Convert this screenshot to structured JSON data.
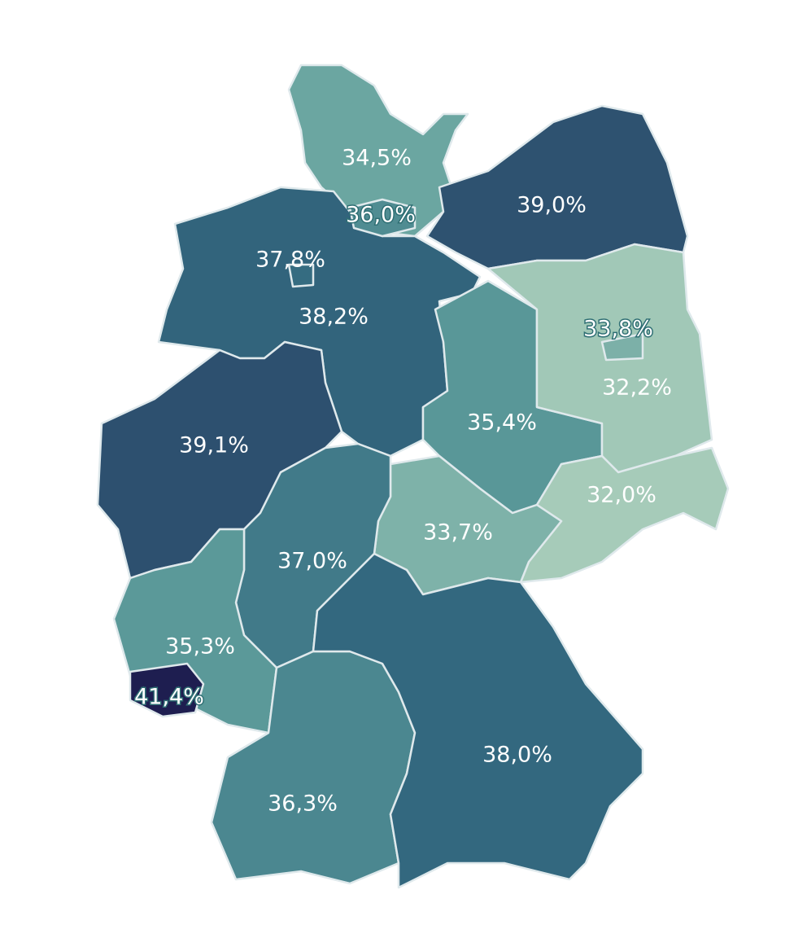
{
  "regions": [
    {
      "value": 34.5,
      "label": "34,5%"
    },
    {
      "value": 39.0,
      "label": "39,0%"
    },
    {
      "value": 38.2,
      "label": "38,2%"
    },
    {
      "value": 35.4,
      "label": "35,4%"
    },
    {
      "value": 32.2,
      "label": "32,2%"
    },
    {
      "value": 32.0,
      "label": "32,0%"
    },
    {
      "value": 33.7,
      "label": "33,7%"
    },
    {
      "value": 39.1,
      "label": "39,1%"
    },
    {
      "value": 37.0,
      "label": "37,0%"
    },
    {
      "value": 35.3,
      "label": "35,3%"
    },
    {
      "value": 36.3,
      "label": "36,3%"
    },
    {
      "value": 38.0,
      "label": "38,0%"
    },
    {
      "value": 36.0,
      "label": "36,0%"
    },
    {
      "value": 37.8,
      "label": "37,8%"
    },
    {
      "value": 33.8,
      "label": "33,8%"
    },
    {
      "value": 41.4,
      "label": "41,4%"
    }
  ]
}
